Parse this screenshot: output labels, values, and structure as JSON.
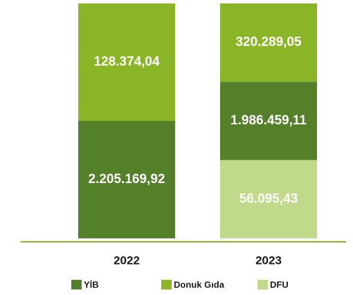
{
  "chart_data": {
    "type": "bar",
    "stacked": true,
    "categories": [
      "2022",
      "2023"
    ],
    "series": [
      {
        "name": "DFU",
        "color": "#c1d98a",
        "values": [
          null,
          56095.43
        ],
        "value_labels": [
          null,
          "56.095,43"
        ]
      },
      {
        "name": "YİB",
        "color": "#55802a",
        "values": [
          2205169.92,
          1986459.11
        ],
        "value_labels": [
          "2.205.169,92",
          "1.986.459,11"
        ]
      },
      {
        "name": "Donuk Gıda",
        "color": "#8ab526",
        "values": [
          128374.04,
          320289.05
        ],
        "value_labels": [
          "128.374,04",
          "320.289,05"
        ]
      }
    ],
    "legend_order": [
      "YİB",
      "Donuk Gıda",
      "DFU"
    ],
    "axis_color": "#8ab526"
  }
}
